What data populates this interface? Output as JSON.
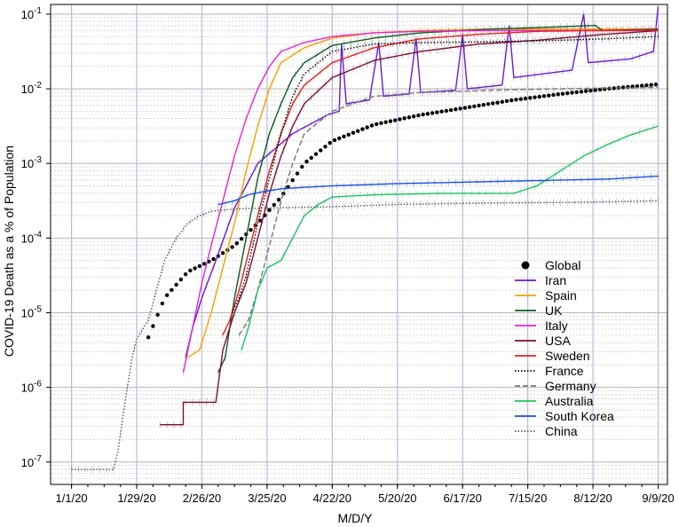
{
  "chart_data": {
    "type": "line",
    "title": "",
    "xlabel": "M/D/Y",
    "ylabel": "COVID-19 Death as a % of Population",
    "x_tick_labels": [
      "1/1/20",
      "1/29/20",
      "2/26/20",
      "3/25/20",
      "4/22/20",
      "5/20/20",
      "6/17/20",
      "7/15/20",
      "8/12/20",
      "9/9/20"
    ],
    "x_tick_days": [
      0,
      28,
      56,
      84,
      112,
      140,
      168,
      196,
      224,
      252
    ],
    "y_tick_exponents": [
      -7,
      -6,
      -5,
      -4,
      -3,
      -2,
      -1
    ],
    "y_scale": "log",
    "ylim": [
      "1e-7.3",
      "1e-0.87"
    ],
    "grid": true,
    "legend_position": "right",
    "series": [
      {
        "name": "Global",
        "color": "#000000",
        "style": "dots",
        "points": [
          [
            33,
            -5.33
          ],
          [
            40,
            -4.8
          ],
          [
            50,
            -4.45
          ],
          [
            60,
            -4.3
          ],
          [
            70,
            -4.1
          ],
          [
            80,
            -3.8
          ],
          [
            90,
            -3.45
          ],
          [
            100,
            -3.0
          ],
          [
            112,
            -2.7
          ],
          [
            130,
            -2.48
          ],
          [
            150,
            -2.35
          ],
          [
            170,
            -2.25
          ],
          [
            190,
            -2.15
          ],
          [
            210,
            -2.07
          ],
          [
            230,
            -2.0
          ],
          [
            252,
            -1.94
          ]
        ]
      },
      {
        "name": "Iran",
        "color": "#6a1cc8",
        "style": "solid",
        "points": [
          [
            49,
            -5.6
          ],
          [
            52,
            -5.2
          ],
          [
            56,
            -4.8
          ],
          [
            62,
            -4.3
          ],
          [
            70,
            -3.6
          ],
          [
            80,
            -3.0
          ],
          [
            95,
            -2.6
          ],
          [
            110,
            -2.35
          ],
          [
            115,
            -2.3
          ],
          [
            116,
            -1.4
          ],
          [
            118,
            -2.2
          ],
          [
            128,
            -2.15
          ],
          [
            132,
            -1.38
          ],
          [
            134,
            -2.1
          ],
          [
            145,
            -2.07
          ],
          [
            148,
            -1.32
          ],
          [
            150,
            -2.05
          ],
          [
            165,
            -2.02
          ],
          [
            168,
            -1.27
          ],
          [
            170,
            -2.0
          ],
          [
            185,
            -1.95
          ],
          [
            188,
            -1.15
          ],
          [
            190,
            -1.85
          ],
          [
            215,
            -1.75
          ],
          [
            220,
            -1.0
          ],
          [
            222,
            -1.65
          ],
          [
            240,
            -1.6
          ],
          [
            250,
            -1.5
          ],
          [
            252,
            -0.9
          ]
        ]
      },
      {
        "name": "Spain",
        "color": "#f5a100",
        "style": "solid",
        "points": [
          [
            50,
            -5.6
          ],
          [
            55,
            -5.5
          ],
          [
            60,
            -5.0
          ],
          [
            65,
            -4.4
          ],
          [
            70,
            -3.8
          ],
          [
            75,
            -3.1
          ],
          [
            80,
            -2.5
          ],
          [
            85,
            -2.0
          ],
          [
            90,
            -1.65
          ],
          [
            100,
            -1.45
          ],
          [
            112,
            -1.32
          ],
          [
            130,
            -1.25
          ],
          [
            150,
            -1.22
          ],
          [
            180,
            -1.2
          ],
          [
            220,
            -1.2
          ],
          [
            252,
            -1.2
          ]
        ]
      },
      {
        "name": "UK",
        "color": "#0b5a24",
        "style": "solid",
        "points": [
          [
            63,
            -5.8
          ],
          [
            66,
            -5.6
          ],
          [
            70,
            -4.8
          ],
          [
            75,
            -4.0
          ],
          [
            80,
            -3.2
          ],
          [
            85,
            -2.6
          ],
          [
            90,
            -2.2
          ],
          [
            95,
            -1.85
          ],
          [
            100,
            -1.65
          ],
          [
            112,
            -1.42
          ],
          [
            130,
            -1.32
          ],
          [
            150,
            -1.25
          ],
          [
            180,
            -1.2
          ],
          [
            210,
            -1.17
          ],
          [
            225,
            -1.15
          ],
          [
            228,
            -1.22
          ],
          [
            252,
            -1.2
          ]
        ]
      },
      {
        "name": "Italy",
        "color": "#e02ad0",
        "style": "solid",
        "points": [
          [
            48,
            -5.8
          ],
          [
            52,
            -5.2
          ],
          [
            56,
            -4.6
          ],
          [
            60,
            -4.1
          ],
          [
            65,
            -3.5
          ],
          [
            70,
            -2.9
          ],
          [
            75,
            -2.4
          ],
          [
            80,
            -2.0
          ],
          [
            85,
            -1.7
          ],
          [
            90,
            -1.5
          ],
          [
            100,
            -1.38
          ],
          [
            112,
            -1.3
          ],
          [
            130,
            -1.25
          ],
          [
            150,
            -1.23
          ],
          [
            180,
            -1.22
          ],
          [
            220,
            -1.22
          ],
          [
            252,
            -1.22
          ]
        ]
      },
      {
        "name": "USA",
        "color": "#7a1030",
        "style": "solid",
        "points": [
          [
            38,
            -6.5
          ],
          [
            48,
            -6.5
          ],
          [
            48,
            -6.2
          ],
          [
            62,
            -6.2
          ],
          [
            65,
            -5.5
          ],
          [
            70,
            -5.0
          ],
          [
            75,
            -4.6
          ],
          [
            80,
            -4.0
          ],
          [
            85,
            -3.4
          ],
          [
            90,
            -2.9
          ],
          [
            95,
            -2.5
          ],
          [
            100,
            -2.2
          ],
          [
            112,
            -1.85
          ],
          [
            130,
            -1.62
          ],
          [
            150,
            -1.5
          ],
          [
            175,
            -1.4
          ],
          [
            200,
            -1.35
          ],
          [
            225,
            -1.28
          ],
          [
            252,
            -1.22
          ]
        ]
      },
      {
        "name": "Sweden",
        "color": "#e02020",
        "style": "solid",
        "points": [
          [
            65,
            -5.3
          ],
          [
            68,
            -5.1
          ],
          [
            72,
            -4.7
          ],
          [
            76,
            -4.2
          ],
          [
            80,
            -3.7
          ],
          [
            85,
            -3.1
          ],
          [
            90,
            -2.6
          ],
          [
            95,
            -2.2
          ],
          [
            100,
            -1.95
          ],
          [
            112,
            -1.65
          ],
          [
            130,
            -1.45
          ],
          [
            150,
            -1.33
          ],
          [
            175,
            -1.27
          ],
          [
            200,
            -1.23
          ],
          [
            225,
            -1.22
          ],
          [
            252,
            -1.21
          ]
        ]
      },
      {
        "name": "France",
        "color": "#000000",
        "style": "dotted",
        "points": [
          [
            69,
            -5.0
          ],
          [
            72,
            -4.8
          ],
          [
            75,
            -4.5
          ],
          [
            80,
            -3.8
          ],
          [
            85,
            -3.2
          ],
          [
            90,
            -2.6
          ],
          [
            95,
            -2.1
          ],
          [
            100,
            -1.8
          ],
          [
            112,
            -1.5
          ],
          [
            130,
            -1.4
          ],
          [
            150,
            -1.38
          ],
          [
            180,
            -1.37
          ],
          [
            210,
            -1.35
          ],
          [
            230,
            -1.33
          ],
          [
            252,
            -1.3
          ]
        ]
      },
      {
        "name": "Germany",
        "color": "#777777",
        "style": "dashed",
        "points": [
          [
            72,
            -5.3
          ],
          [
            76,
            -5.1
          ],
          [
            80,
            -4.7
          ],
          [
            85,
            -4.1
          ],
          [
            90,
            -3.5
          ],
          [
            95,
            -3.0
          ],
          [
            100,
            -2.6
          ],
          [
            112,
            -2.3
          ],
          [
            130,
            -2.1
          ],
          [
            150,
            -2.05
          ],
          [
            180,
            -2.02
          ],
          [
            210,
            -2.0
          ],
          [
            230,
            -1.99
          ],
          [
            252,
            -1.98
          ]
        ]
      },
      {
        "name": "Australia",
        "color": "#1fc060",
        "style": "solid",
        "points": [
          [
            73,
            -5.5
          ],
          [
            76,
            -5.2
          ],
          [
            80,
            -4.7
          ],
          [
            84,
            -4.4
          ],
          [
            90,
            -4.3
          ],
          [
            95,
            -4.0
          ],
          [
            100,
            -3.7
          ],
          [
            106,
            -3.55
          ],
          [
            112,
            -3.45
          ],
          [
            130,
            -3.42
          ],
          [
            160,
            -3.4
          ],
          [
            190,
            -3.4
          ],
          [
            200,
            -3.3
          ],
          [
            210,
            -3.1
          ],
          [
            220,
            -2.9
          ],
          [
            230,
            -2.75
          ],
          [
            240,
            -2.62
          ],
          [
            252,
            -2.5
          ]
        ]
      },
      {
        "name": "South Korea",
        "color": "#1a4fe0",
        "style": "solid",
        "points": [
          [
            63,
            -3.55
          ],
          [
            70,
            -3.5
          ],
          [
            76,
            -3.42
          ],
          [
            82,
            -3.38
          ],
          [
            90,
            -3.34
          ],
          [
            100,
            -3.32
          ],
          [
            112,
            -3.3
          ],
          [
            140,
            -3.27
          ],
          [
            170,
            -3.25
          ],
          [
            200,
            -3.23
          ],
          [
            230,
            -3.21
          ],
          [
            252,
            -3.17
          ]
        ]
      },
      {
        "name": "China",
        "color": "#555555",
        "style": "dotted",
        "points": [
          [
            0,
            -7.1
          ],
          [
            18,
            -7.1
          ],
          [
            20,
            -6.85
          ],
          [
            22,
            -6.4
          ],
          [
            24,
            -6.0
          ],
          [
            26,
            -5.6
          ],
          [
            28,
            -5.35
          ],
          [
            33,
            -5.1
          ],
          [
            36,
            -4.75
          ],
          [
            40,
            -4.3
          ],
          [
            45,
            -4.0
          ],
          [
            50,
            -3.8
          ],
          [
            55,
            -3.7
          ],
          [
            60,
            -3.64
          ],
          [
            70,
            -3.61
          ],
          [
            80,
            -3.6
          ],
          [
            112,
            -3.58
          ],
          [
            140,
            -3.55
          ],
          [
            180,
            -3.53
          ],
          [
            220,
            -3.52
          ],
          [
            252,
            -3.5
          ]
        ]
      }
    ]
  }
}
